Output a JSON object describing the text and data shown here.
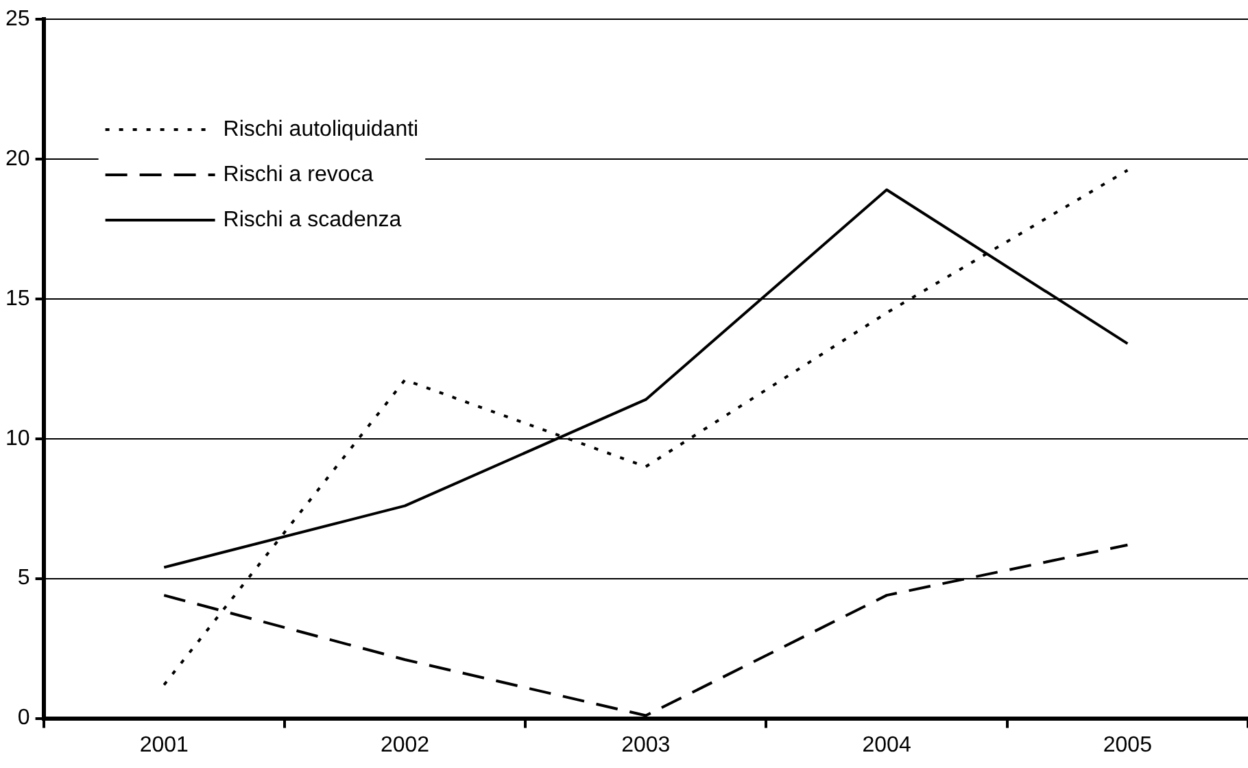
{
  "chart_data": {
    "type": "line",
    "categories": [
      "2001",
      "2002",
      "2003",
      "2004",
      "2005"
    ],
    "series": [
      {
        "name": "Rischi autoliquidanti",
        "color": "#000000",
        "line_style": "dotted",
        "values": [
          1.2,
          12.1,
          9.0,
          14.5,
          19.6
        ]
      },
      {
        "name": "Rischi a revoca",
        "color": "#000000",
        "line_style": "dashed",
        "values": [
          4.4,
          2.1,
          0.1,
          4.4,
          6.2
        ]
      },
      {
        "name": "Rischi a scadenza",
        "color": "#000000",
        "line_style": "solid",
        "values": [
          5.4,
          7.6,
          11.4,
          18.9,
          13.4
        ]
      }
    ],
    "ylim": [
      0,
      25
    ],
    "yticks": [
      0,
      5,
      10,
      15,
      20,
      25
    ],
    "grid": "y",
    "legend": "top left",
    "marker": "none"
  }
}
